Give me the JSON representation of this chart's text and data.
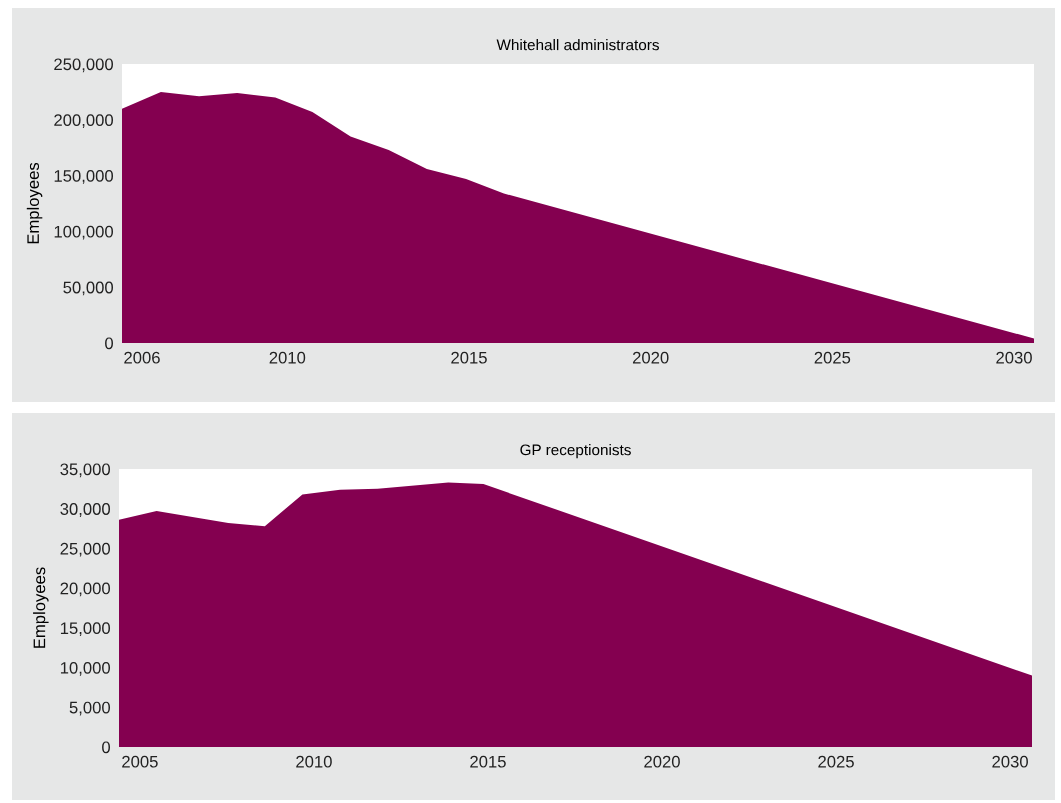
{
  "chart_data": [
    {
      "type": "area",
      "title": "Whitehall administrators",
      "ylabel": "Employees",
      "xlim": [
        2005.45,
        2030.55
      ],
      "xticks": [
        2006,
        2010,
        2015,
        2020,
        2025,
        2030
      ],
      "ylim": [
        0,
        250000
      ],
      "yticks": [
        {
          "value": 0,
          "label": "0"
        },
        {
          "value": 50000,
          "label": "50,000"
        },
        {
          "value": 100000,
          "label": "100,000"
        },
        {
          "value": 150000,
          "label": "150,000"
        },
        {
          "value": 200000,
          "label": "200,000"
        },
        {
          "value": 250000,
          "label": "250,000"
        }
      ],
      "x": [
        2005.45,
        2006.52,
        2007.57,
        2008.62,
        2009.67,
        2010.69,
        2011.74,
        2012.79,
        2013.84,
        2014.92,
        2015.96,
        2030.55
      ],
      "series": [
        {
          "color": "#840050",
          "values": [
            210000,
            225000,
            221000,
            224000,
            220000,
            207000,
            185000,
            173000,
            156000,
            147000,
            134000,
            4000
          ]
        }
      ]
    },
    {
      "type": "area",
      "title": "GP receptionists",
      "ylabel": "Employees",
      "xlim": [
        2004.4,
        2030.63
      ],
      "xticks": [
        2005,
        2010,
        2015,
        2020,
        2025,
        2030
      ],
      "ylim": [
        0,
        35000
      ],
      "yticks": [
        {
          "value": 0,
          "label": "0"
        },
        {
          "value": 5000,
          "label": "5,000"
        },
        {
          "value": 10000,
          "label": "10,000"
        },
        {
          "value": 15000,
          "label": "15,000"
        },
        {
          "value": 20000,
          "label": "20,000"
        },
        {
          "value": 25000,
          "label": "25,000"
        },
        {
          "value": 30000,
          "label": "30,000"
        },
        {
          "value": 35000,
          "label": "35,000"
        }
      ],
      "x": [
        2004.4,
        2005.48,
        2007.54,
        2008.59,
        2009.67,
        2010.75,
        2011.83,
        2013.86,
        2014.87,
        2030.63
      ],
      "series": [
        {
          "color": "#840050",
          "values": [
            28600,
            29700,
            28200,
            27800,
            31800,
            32400,
            32500,
            33300,
            33100,
            9000
          ]
        }
      ]
    }
  ]
}
